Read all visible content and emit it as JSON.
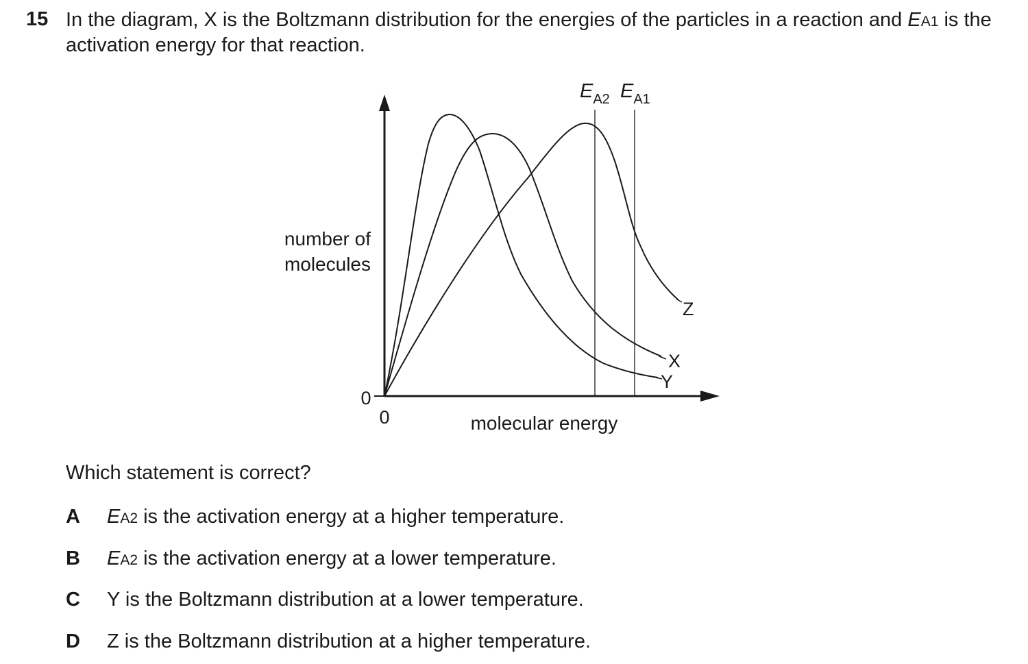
{
  "question": {
    "number": "15",
    "stem_part1": "In the diagram, X is the Boltzmann distribution for the energies of the particles in a reaction and ",
    "stem_sym_E": "E",
    "stem_sym_sub": "A1",
    "stem_part2": " is the activation energy for that reaction.",
    "prompt": "Which statement is correct?"
  },
  "diagram": {
    "ylabel_line1": "number of",
    "ylabel_line2": "molecules",
    "xlabel": "molecular energy",
    "x_origin_label": "0",
    "y_origin_label": "0",
    "ea2_label": "E",
    "ea2_sub": "A2",
    "ea1_label": "E",
    "ea1_sub": "A1",
    "curve_labels": {
      "x": "X",
      "y": "Y",
      "z": "Z"
    }
  },
  "options": [
    {
      "letter": "A",
      "sym": "E",
      "sub": "A2",
      "text": " is the activation energy at a higher temperature."
    },
    {
      "letter": "B",
      "sym": "E",
      "sub": "A2",
      "text": " is the activation energy at a lower temperature."
    },
    {
      "letter": "C",
      "sym": "",
      "sub": "",
      "text": "Y is the Boltzmann distribution at a lower temperature."
    },
    {
      "letter": "D",
      "sym": "",
      "sub": "",
      "text": "Z is the Boltzmann distribution at a higher temperature."
    }
  ]
}
